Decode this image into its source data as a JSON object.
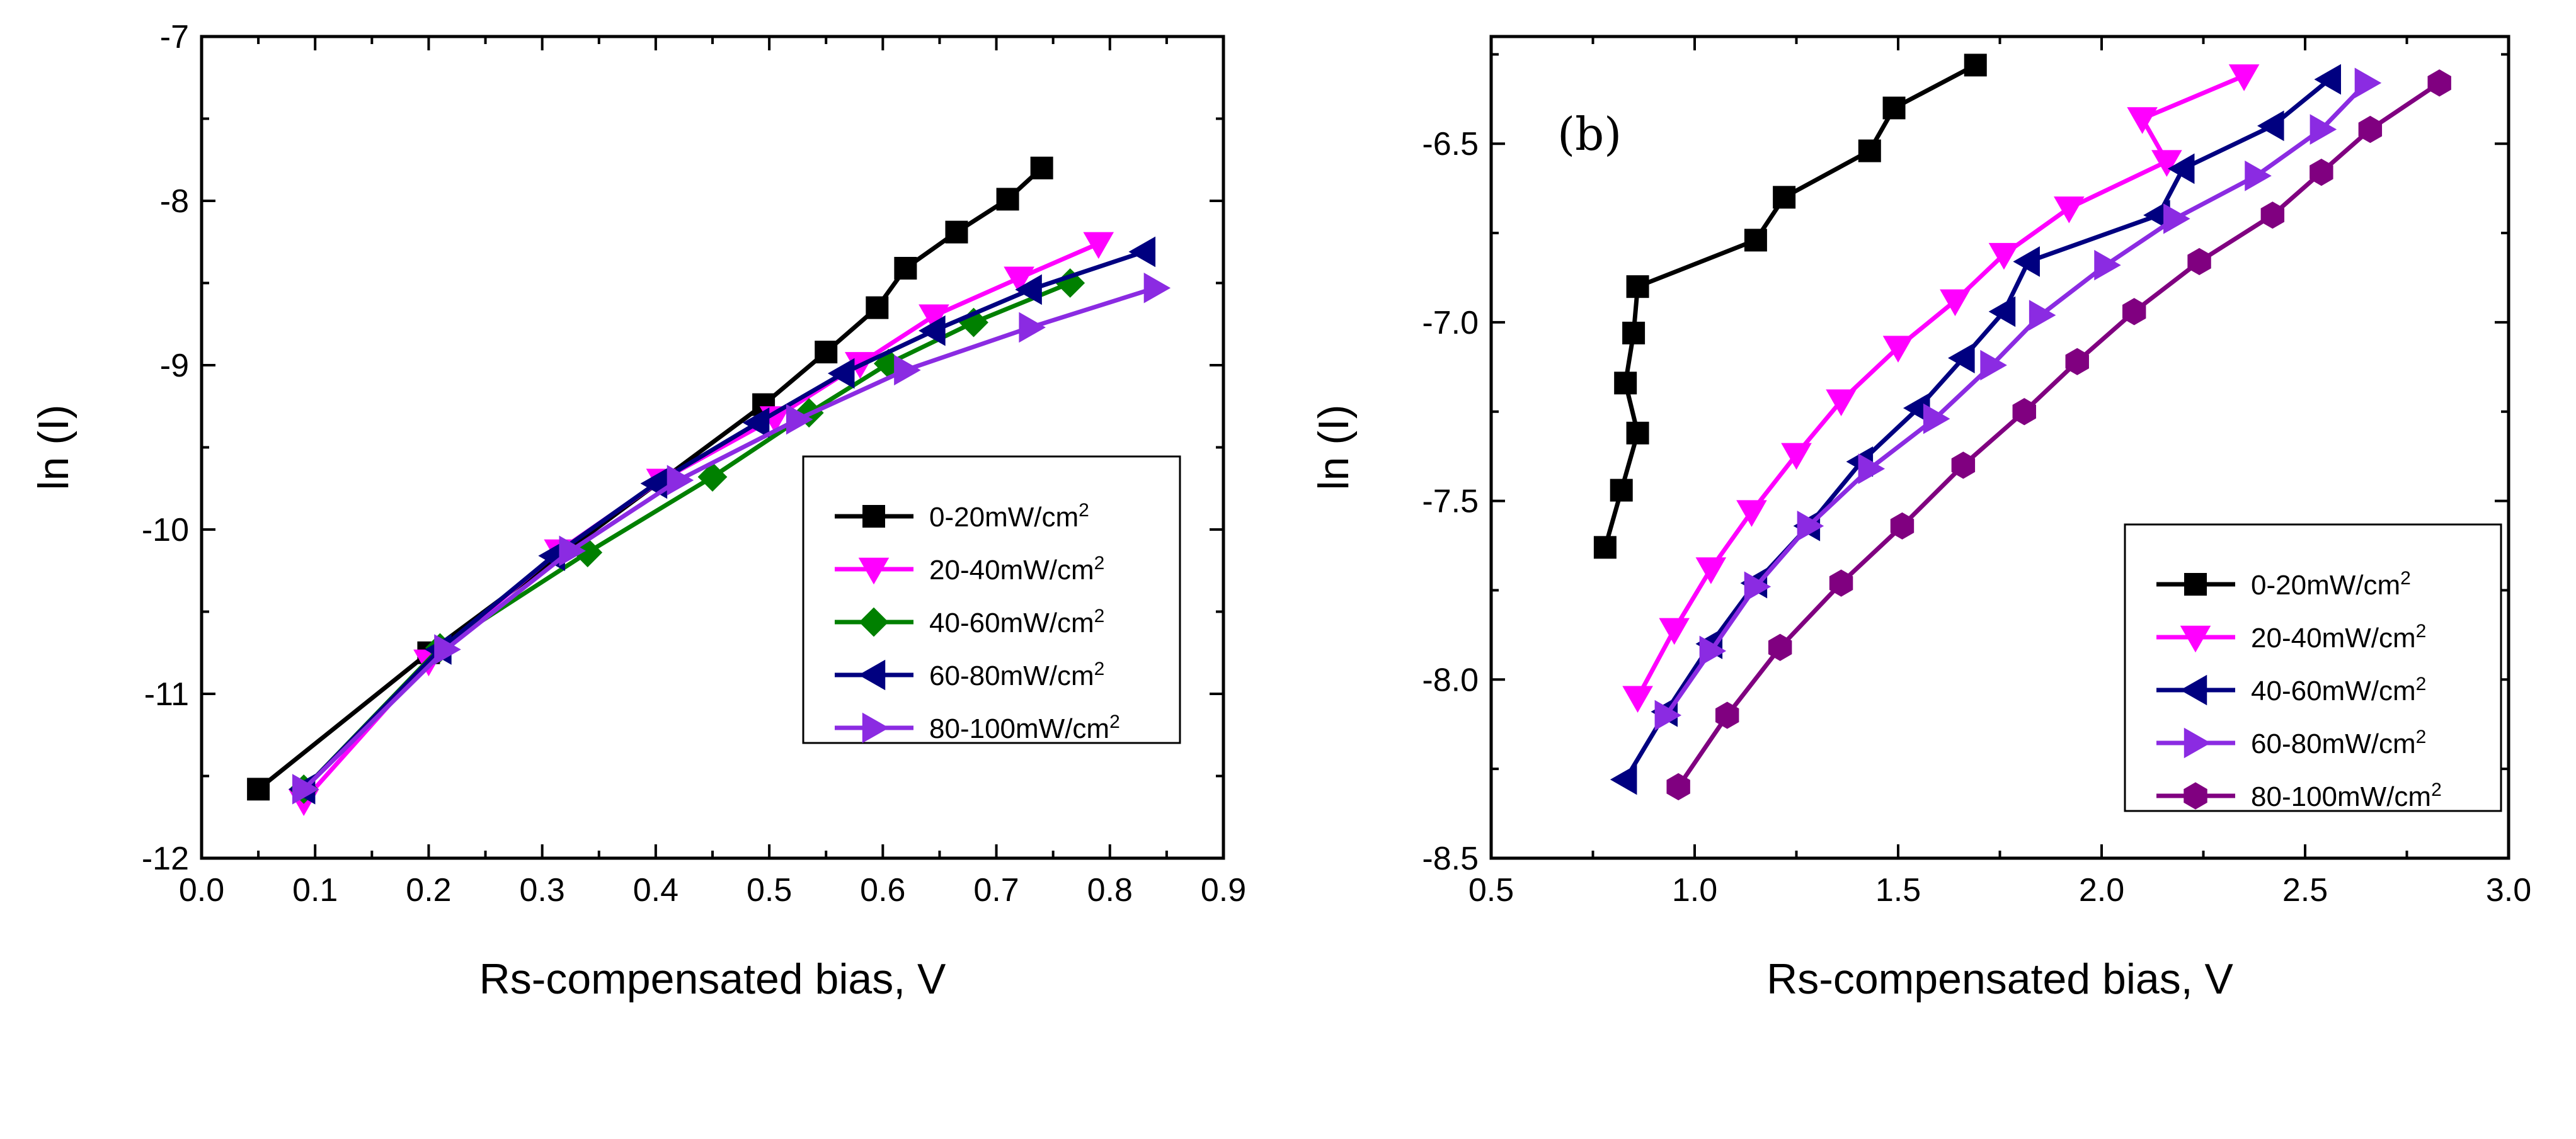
{
  "chart_data": [
    {
      "type": "line",
      "panel_label": "",
      "xlabel": "Rs-compensated bias, V",
      "ylabel": "ln (I)",
      "xlim": [
        0.0,
        0.9
      ],
      "ylim": [
        -12,
        -7
      ],
      "xticks": [
        "0.0",
        "0.1",
        "0.2",
        "0.3",
        "0.4",
        "0.5",
        "0.6",
        "0.7",
        "0.8",
        "0.9"
      ],
      "yticks": [
        "-12",
        "-11",
        "-10",
        "-9",
        "-8",
        "-7"
      ],
      "legend_position": "center-right",
      "legend_unit_sup": "2",
      "series": [
        {
          "name": "0-20mW/cm",
          "color": "#000000",
          "marker": "square",
          "x": [
            0.05,
            0.2,
            0.495,
            0.55,
            0.595,
            0.62,
            0.665,
            0.71,
            0.74
          ],
          "y": [
            -11.58,
            -10.75,
            -9.24,
            -8.92,
            -8.65,
            -8.41,
            -8.19,
            -7.99,
            -7.8
          ]
        },
        {
          "name": "20-40mW/cm",
          "color": "#ff00ff",
          "marker": "triangle-down",
          "x": [
            0.09,
            0.2,
            0.315,
            0.405,
            0.505,
            0.58,
            0.645,
            0.72,
            0.79
          ],
          "y": [
            -11.65,
            -10.8,
            -10.13,
            -9.7,
            -9.32,
            -8.99,
            -8.7,
            -8.47,
            -8.26
          ]
        },
        {
          "name": "40-60mW/cm",
          "color": "#008000",
          "marker": "diamond",
          "x": [
            0.09,
            0.21,
            0.34,
            0.45,
            0.535,
            0.605,
            0.68,
            0.765
          ],
          "y": [
            -11.58,
            -10.72,
            -10.14,
            -9.68,
            -9.29,
            -8.99,
            -8.74,
            -8.5
          ]
        },
        {
          "name": "60-80mW/cm",
          "color": "#000080",
          "marker": "triangle-left",
          "x": [
            0.09,
            0.21,
            0.31,
            0.4,
            0.49,
            0.565,
            0.645,
            0.73,
            0.83
          ],
          "y": [
            -11.58,
            -10.73,
            -10.16,
            -9.72,
            -9.35,
            -9.05,
            -8.79,
            -8.54,
            -8.31
          ]
        },
        {
          "name": "80-100mW/cm",
          "color": "#8b2be2",
          "marker": "triangle-right",
          "x": [
            0.09,
            0.215,
            0.325,
            0.42,
            0.525,
            0.62,
            0.73,
            0.84
          ],
          "y": [
            -11.58,
            -10.73,
            -10.13,
            -9.7,
            -9.33,
            -9.03,
            -8.77,
            -8.53
          ]
        }
      ]
    },
    {
      "type": "line",
      "panel_label": "(b)",
      "xlabel": "Rs-compensated bias, V",
      "ylabel": "ln (I)",
      "xlim": [
        0.5,
        3.0
      ],
      "ylim": [
        -8.5,
        -6.2
      ],
      "xticks": [
        "0.5",
        "1.0",
        "1.5",
        "2.0",
        "2.5",
        "3.0"
      ],
      "yticks": [
        "-8.5",
        "-8.0",
        "-7.5",
        "-7.0",
        "-6.5"
      ],
      "legend_position": "lower-right",
      "legend_unit_sup": "2",
      "series": [
        {
          "name": "0-20mW/cm",
          "color": "#000000",
          "marker": "square",
          "x": [
            0.78,
            0.82,
            0.86,
            0.83,
            0.85,
            0.86,
            1.15,
            1.22,
            1.43,
            1.49,
            1.69
          ],
          "y": [
            -7.63,
            -7.47,
            -7.31,
            -7.17,
            -7.03,
            -6.9,
            -6.77,
            -6.65,
            -6.52,
            -6.4,
            -6.28
          ]
        },
        {
          "name": "20-40mW/cm",
          "color": "#ff00ff",
          "marker": "triangle-down",
          "x": [
            0.86,
            0.95,
            1.04,
            1.14,
            1.25,
            1.36,
            1.5,
            1.64,
            1.76,
            1.92,
            2.16,
            2.1,
            2.35
          ],
          "y": [
            -8.05,
            -7.86,
            -7.69,
            -7.53,
            -7.37,
            -7.22,
            -7.07,
            -6.94,
            -6.81,
            -6.68,
            -6.55,
            -6.43,
            -6.31
          ]
        },
        {
          "name": "40-60mW/cm",
          "color": "#000080",
          "marker": "triangle-left",
          "x": [
            0.83,
            0.93,
            1.04,
            1.15,
            1.28,
            1.41,
            1.55,
            1.66,
            1.76,
            1.82,
            2.14,
            2.2,
            2.42,
            2.56
          ],
          "y": [
            -8.28,
            -8.09,
            -7.9,
            -7.73,
            -7.57,
            -7.39,
            -7.24,
            -7.1,
            -6.97,
            -6.83,
            -6.7,
            -6.57,
            -6.45,
            -6.32
          ]
        },
        {
          "name": "60-80mW/cm",
          "color": "#8b2be2",
          "marker": "triangle-right",
          "x": [
            0.93,
            1.04,
            1.15,
            1.28,
            1.43,
            1.59,
            1.73,
            1.85,
            2.01,
            2.18,
            2.38,
            2.54,
            2.65
          ],
          "y": [
            -8.1,
            -7.92,
            -7.74,
            -7.57,
            -7.41,
            -7.27,
            -7.12,
            -6.98,
            -6.84,
            -6.71,
            -6.59,
            -6.46,
            -6.33
          ]
        },
        {
          "name": "80-100mW/cm",
          "color": "#800080",
          "marker": "hexagon",
          "x": [
            0.96,
            1.08,
            1.21,
            1.36,
            1.51,
            1.66,
            1.81,
            1.94,
            2.08,
            2.24,
            2.42,
            2.54,
            2.66,
            2.83
          ],
          "y": [
            -8.3,
            -8.1,
            -7.91,
            -7.73,
            -7.57,
            -7.4,
            -7.25,
            -7.11,
            -6.97,
            -6.83,
            -6.7,
            -6.58,
            -6.46,
            -6.33
          ]
        }
      ]
    }
  ]
}
